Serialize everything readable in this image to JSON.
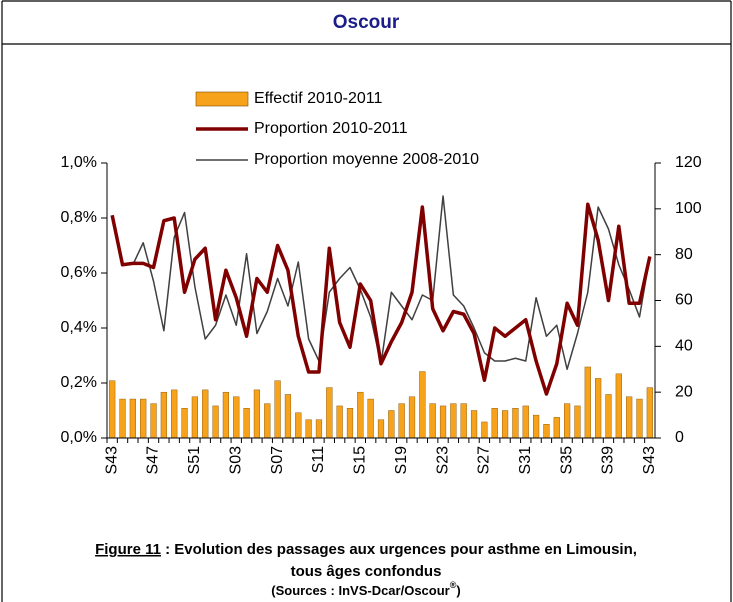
{
  "header": {
    "title": "Oscour"
  },
  "chart_data": {
    "type": "combo",
    "categories": [
      "S43",
      null,
      null,
      null,
      "S47",
      null,
      null,
      null,
      "S51",
      null,
      null,
      null,
      "S03",
      null,
      null,
      null,
      "S07",
      null,
      null,
      null,
      "S11",
      null,
      null,
      null,
      "S15",
      null,
      null,
      null,
      "S19",
      null,
      null,
      null,
      "S23",
      null,
      null,
      null,
      "S27",
      null,
      null,
      null,
      "S31",
      null,
      null,
      null,
      "S35",
      null,
      null,
      null,
      "S39",
      null,
      null,
      null,
      "S43"
    ],
    "series": [
      {
        "name": "Effectif 2010-2011",
        "type": "bar",
        "axis": "y2",
        "color": "#f7a21b",
        "values": [
          25,
          17,
          17,
          17,
          15,
          20,
          21,
          13,
          18,
          21,
          14,
          20,
          18,
          13,
          21,
          15,
          25,
          19,
          11,
          8,
          8,
          22,
          14,
          13,
          20,
          17,
          8,
          12,
          15,
          18,
          29,
          15,
          14,
          15,
          15,
          12,
          7,
          13,
          12,
          13,
          14,
          10,
          6,
          9,
          15,
          14,
          31,
          26,
          19,
          28,
          18,
          17,
          22
        ]
      },
      {
        "name": "Proportion 2010-2011",
        "type": "line",
        "color": "#800000",
        "values": [
          0.81,
          0.63,
          0.635,
          0.635,
          0.62,
          0.79,
          0.8,
          0.53,
          0.65,
          0.69,
          0.43,
          0.61,
          0.51,
          0.37,
          0.58,
          0.53,
          0.7,
          0.61,
          0.37,
          0.24,
          0.24,
          0.69,
          0.42,
          0.33,
          0.56,
          0.5,
          0.27,
          0.35,
          0.42,
          0.53,
          0.84,
          0.47,
          0.39,
          0.46,
          0.45,
          0.38,
          0.21,
          0.4,
          0.37,
          0.4,
          0.43,
          0.28,
          0.16,
          0.27,
          0.49,
          0.41,
          0.85,
          0.72,
          0.5,
          0.77,
          0.49,
          0.49,
          0.66
        ]
      },
      {
        "name": "Proportion moyenne 2008-2010",
        "type": "line",
        "color": "#404040",
        "values": [
          null,
          null,
          0.63,
          0.71,
          0.57,
          0.39,
          0.73,
          0.82,
          0.55,
          0.36,
          0.41,
          0.52,
          0.41,
          0.67,
          0.38,
          0.46,
          0.58,
          0.48,
          0.64,
          0.36,
          0.28,
          0.53,
          0.58,
          0.62,
          0.54,
          0.44,
          0.27,
          0.53,
          0.48,
          0.43,
          0.52,
          0.5,
          0.88,
          0.52,
          0.48,
          0.4,
          0.31,
          0.28,
          0.28,
          0.29,
          0.28,
          0.51,
          0.37,
          0.41,
          0.25,
          0.38,
          0.53,
          0.84,
          0.76,
          0.63,
          0.54,
          0.44,
          0.66
        ]
      }
    ],
    "ylim": [
      0,
      1.0
    ],
    "yticks": [
      {
        "value": 0,
        "label": "0,0%"
      },
      {
        "value": 0.2,
        "label": "0,2%"
      },
      {
        "value": 0.4,
        "label": "0,4%"
      },
      {
        "value": 0.6,
        "label": "0,6%"
      },
      {
        "value": 0.8,
        "label": "0,8%"
      },
      {
        "value": 1.0,
        "label": "1,0%"
      }
    ],
    "y2lim": [
      0,
      120
    ],
    "y2ticks": [
      0,
      20,
      40,
      60,
      80,
      100,
      120
    ]
  },
  "caption": {
    "figure": "Figure 11",
    "line1": " : Evolution des passages aux urgences pour asthme en Limousin,",
    "line2": "tous âges confondus",
    "sources": "(Sources : InVS-Dcar/Oscour",
    "mark": "®",
    "close": ")"
  }
}
